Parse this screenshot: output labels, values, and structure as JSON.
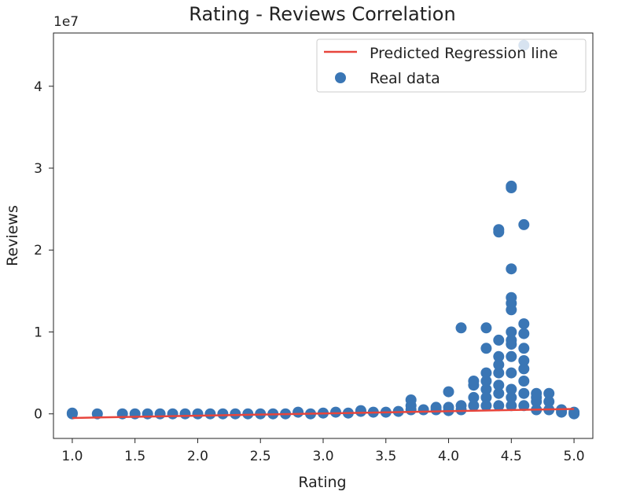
{
  "chart_data": {
    "type": "scatter",
    "title": "Rating - Reviews Correlation",
    "xlabel": "Rating",
    "ylabel": "Reviews",
    "y_scale_label": "1e7",
    "xlim": [
      0.85,
      5.15
    ],
    "ylim": [
      -0.3,
      4.65
    ],
    "xticks": [
      1.0,
      1.5,
      2.0,
      2.5,
      3.0,
      3.5,
      4.0,
      4.5,
      5.0
    ],
    "xtick_labels": [
      "1.0",
      "1.5",
      "2.0",
      "2.5",
      "3.0",
      "3.5",
      "4.0",
      "4.5",
      "5.0"
    ],
    "yticks": [
      0,
      1,
      2,
      3,
      4
    ],
    "ytick_labels": [
      "0",
      "1",
      "2",
      "3",
      "4"
    ],
    "grid": false,
    "legend_position": "top-right",
    "series": [
      {
        "name": "Predicted Regression line",
        "kind": "line",
        "color": "#e8453c",
        "x": [
          1.0,
          5.0
        ],
        "y": [
          -0.05,
          0.06
        ]
      },
      {
        "name": "Real data",
        "kind": "scatter",
        "color": "#3a76b5",
        "x": [
          1.0,
          1.0,
          1.2,
          1.4,
          1.5,
          1.6,
          1.7,
          1.8,
          1.9,
          2.0,
          2.1,
          2.2,
          2.3,
          2.4,
          2.5,
          2.6,
          2.7,
          2.8,
          2.9,
          3.0,
          3.1,
          3.2,
          3.3,
          3.3,
          3.4,
          3.5,
          3.6,
          3.7,
          3.7,
          3.7,
          3.8,
          3.9,
          3.9,
          4.0,
          4.0,
          4.0,
          4.1,
          4.1,
          4.1,
          4.2,
          4.2,
          4.2,
          4.2,
          4.3,
          4.3,
          4.3,
          4.3,
          4.3,
          4.3,
          4.3,
          4.4,
          4.4,
          4.4,
          4.4,
          4.4,
          4.4,
          4.4,
          4.4,
          4.4,
          4.5,
          4.5,
          4.5,
          4.5,
          4.5,
          4.5,
          4.5,
          4.5,
          4.5,
          4.5,
          4.5,
          4.5,
          4.5,
          4.5,
          4.6,
          4.6,
          4.6,
          4.6,
          4.6,
          4.6,
          4.6,
          4.6,
          4.6,
          4.6,
          4.7,
          4.7,
          4.7,
          4.7,
          4.8,
          4.8,
          4.8,
          4.9,
          4.9,
          5.0,
          5.0
        ],
        "y": [
          0.0,
          0.01,
          0.0,
          0.0,
          0.0,
          0.0,
          0.0,
          0.0,
          0.0,
          0.0,
          0.0,
          0.0,
          0.0,
          0.0,
          0.0,
          0.0,
          0.0,
          0.02,
          0.0,
          0.01,
          0.02,
          0.01,
          0.03,
          0.04,
          0.02,
          0.02,
          0.03,
          0.05,
          0.1,
          0.17,
          0.05,
          0.05,
          0.08,
          0.04,
          0.08,
          0.27,
          0.05,
          0.1,
          1.05,
          0.1,
          0.2,
          0.35,
          0.4,
          0.1,
          0.2,
          0.3,
          0.4,
          0.5,
          0.8,
          1.05,
          0.1,
          0.25,
          0.35,
          0.5,
          0.7,
          0.9,
          2.22,
          2.25,
          0.6,
          0.1,
          0.3,
          0.5,
          0.7,
          0.85,
          1.0,
          1.27,
          1.35,
          1.42,
          1.77,
          2.76,
          2.78,
          0.9,
          0.2,
          0.1,
          0.25,
          0.4,
          0.55,
          0.65,
          0.8,
          0.98,
          1.1,
          2.31,
          4.5,
          0.05,
          0.15,
          0.2,
          0.25,
          0.05,
          0.15,
          0.25,
          0.02,
          0.05,
          0.0,
          0.02
        ]
      }
    ]
  }
}
